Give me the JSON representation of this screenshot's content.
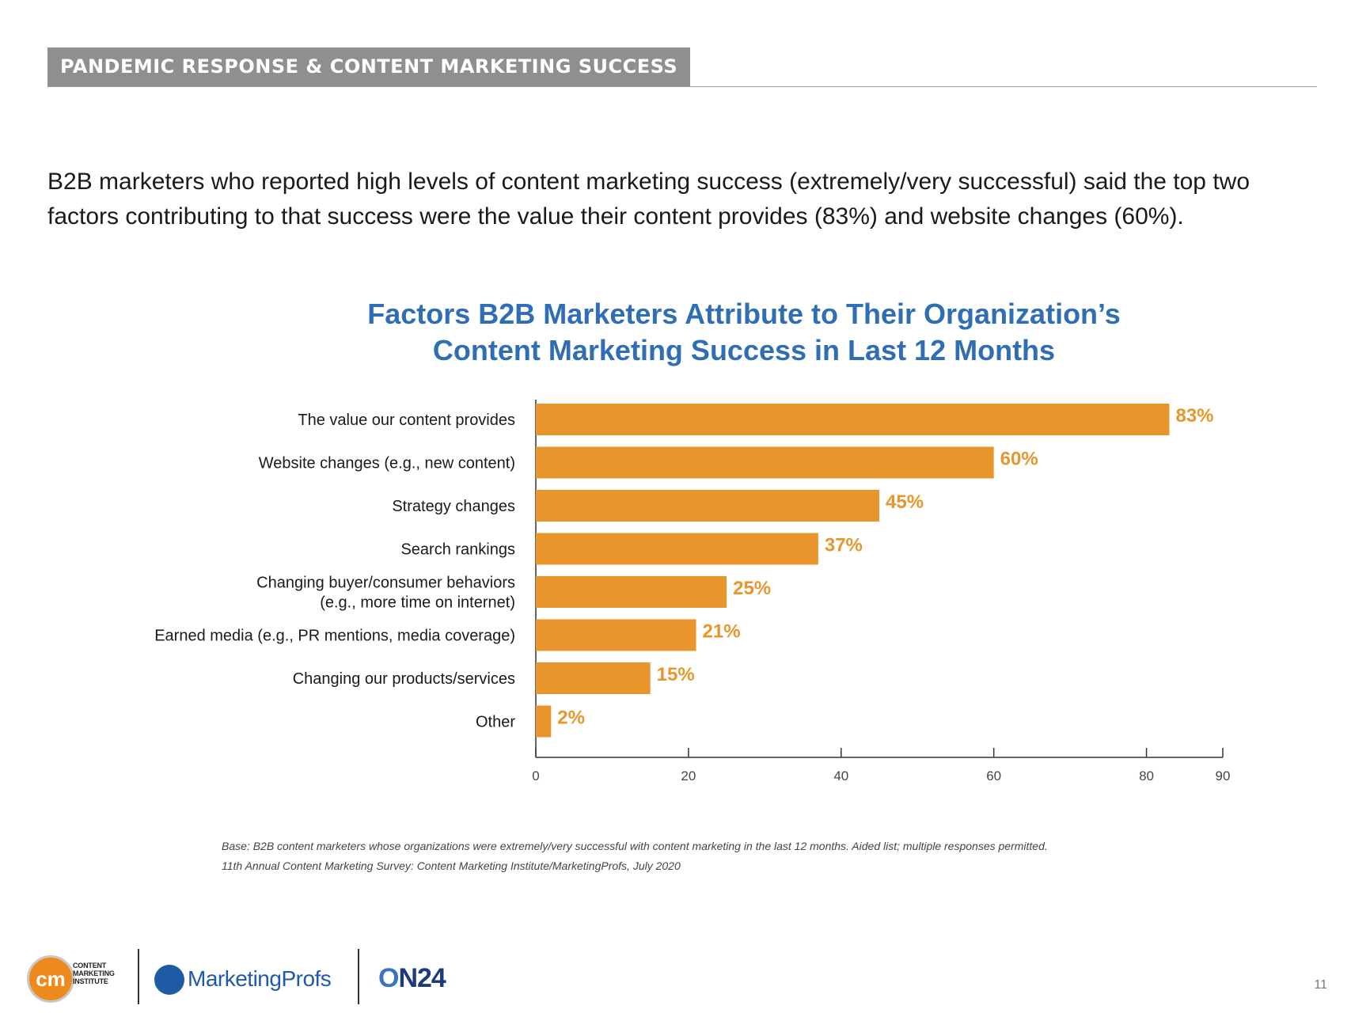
{
  "header": {
    "section_label": "PANDEMIC RESPONSE & CONTENT MARKETING SUCCESS"
  },
  "intro": {
    "line1": "B2B marketers who reported high levels of content marketing success (extremely/very successful) said the top two",
    "line2": "factors contributing to that success were the value their content provides (83%) and website changes (60%)."
  },
  "chart_data": {
    "type": "bar",
    "orientation": "horizontal",
    "title_line1": "Factors B2B Marketers Attribute to Their Organization’s",
    "title_line2": "Content Marketing Success in Last 12 Months",
    "categories": [
      [
        "The value our content provides"
      ],
      [
        "Website changes (e.g., new content)"
      ],
      [
        "Strategy changes"
      ],
      [
        "Search rankings"
      ],
      [
        "Changing buyer/consumer behaviors",
        "(e.g., more time on internet)"
      ],
      [
        "Earned media (e.g., PR mentions, media coverage)"
      ],
      [
        "Changing our products/services"
      ],
      [
        "Other"
      ]
    ],
    "values": [
      83,
      60,
      45,
      37,
      25,
      21,
      15,
      2
    ],
    "value_labels": [
      "83%",
      "60%",
      "45%",
      "37%",
      "25%",
      "21%",
      "15%",
      "2%"
    ],
    "xlim": [
      0,
      90
    ],
    "xticks": [
      0,
      20,
      40,
      60,
      80,
      90
    ],
    "bar_color": "#e8952b",
    "label_color": "#e8952b"
  },
  "footnote": {
    "base": "Base: B2B content marketers whose organizations were extremely/very successful with content marketing in the last 12 months. Aided list; multiple responses permitted.",
    "source": "11th Annual Content Marketing Survey: Content Marketing Institute/MarketingProfs, July 2020"
  },
  "logos": {
    "cmi_mark": "cm",
    "cmi_line1": "CONTENT",
    "cmi_line2": "MARKETING",
    "cmi_line3": "INSTITUTE",
    "marketingprofs": "MarketingProfs",
    "on24_o": "O",
    "on24_rest": "N24"
  },
  "page_number": "11"
}
